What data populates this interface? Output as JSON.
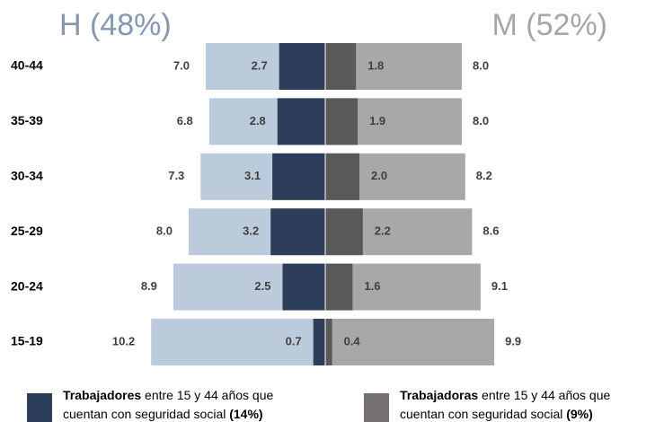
{
  "chart_data": {
    "type": "pyramid",
    "categories": [
      "40-44",
      "35-39",
      "30-34",
      "25-29",
      "20-24",
      "15-19"
    ],
    "left": {
      "label": "H (48%)",
      "label_color": "#8497b0",
      "total": [
        7.0,
        6.8,
        7.3,
        8.0,
        8.9,
        10.2
      ],
      "total_labels": [
        "7.0",
        "6.8",
        "7.3",
        "8.0",
        "8.9",
        "10.2"
      ],
      "total_color": "#bccbdb",
      "insured": [
        2.7,
        2.8,
        3.1,
        3.2,
        2.5,
        0.7
      ],
      "insured_color": "#2e3e5a"
    },
    "right": {
      "label": "M (52%)",
      "label_color": "#a6a6a6",
      "total": [
        8.0,
        8.0,
        8.2,
        8.6,
        9.1,
        9.9
      ],
      "total_labels": [
        "8.0",
        "8.0",
        "8.2",
        "8.6",
        "9.1",
        "9.9"
      ],
      "total_color": "#a8a8a8",
      "insured": [
        1.8,
        1.9,
        2.0,
        2.2,
        1.6,
        0.4
      ],
      "insured_labels": [
        "1.8",
        "1.9",
        "2.0",
        "2.2",
        "1.6",
        "0.4"
      ],
      "insured_color": "#595959"
    },
    "legend": [
      {
        "color": "#2e3e5a",
        "bold": "Trabajadores",
        "text": " entre 15 y 44 años que",
        "line2": "cuentan con seguridad social ",
        "bold2": "(14%)"
      },
      {
        "color": "#767171",
        "bold": "Trabajadoras",
        "text": " entre 15 y 44 años que",
        "line2": "cuentan con seguridad social ",
        "bold2": "(9%)"
      }
    ]
  }
}
